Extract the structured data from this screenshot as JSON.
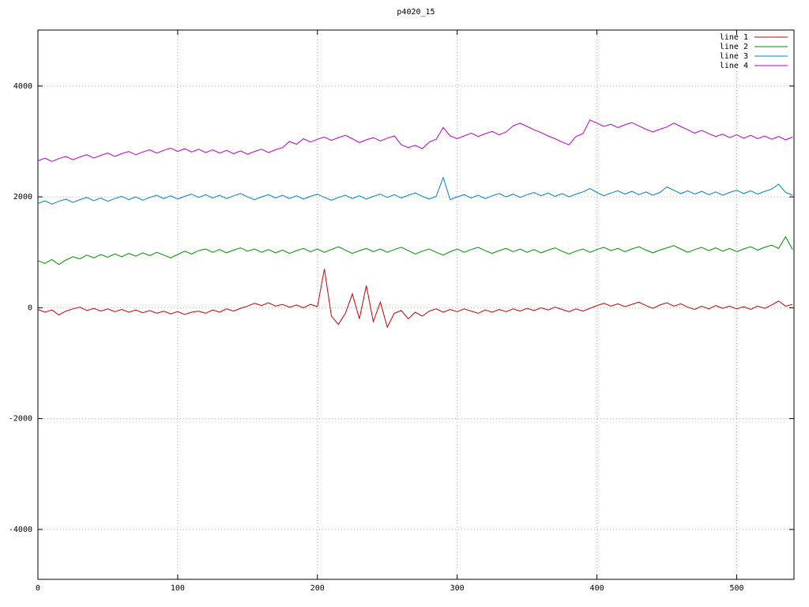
{
  "colors": {
    "background": "#ffffff",
    "border": "#000000",
    "grid": "#b4b4b4",
    "text": "#000000"
  },
  "chart_data": {
    "type": "line",
    "title": "p4020_15",
    "xlabel": "",
    "ylabel": "",
    "xlim": [
      0,
      541
    ],
    "ylim": [
      -4900,
      5010
    ],
    "x_ticks": [
      0,
      100,
      200,
      300,
      400,
      500
    ],
    "y_ticks": [
      -4000,
      -2000,
      0,
      2000,
      4000
    ],
    "grid": true,
    "grid_style": "dotted",
    "legend_position": "top-right-inside",
    "x_start": 0,
    "x_step": 5,
    "series": [
      {
        "name": "line 1",
        "color": "#cc0000",
        "values": [
          -30,
          -80,
          -40,
          -130,
          -60,
          -20,
          10,
          -50,
          -10,
          -60,
          -20,
          -70,
          -30,
          -80,
          -40,
          -90,
          -50,
          -100,
          -60,
          -110,
          -70,
          -120,
          -80,
          -60,
          -100,
          -40,
          -80,
          -20,
          -60,
          -10,
          30,
          80,
          40,
          90,
          30,
          60,
          10,
          50,
          0,
          60,
          20,
          700,
          -150,
          -300,
          -100,
          250,
          -200,
          400,
          -250,
          100,
          -350,
          -100,
          -50,
          -200,
          -80,
          -150,
          -60,
          -20,
          -80,
          -30,
          -70,
          -20,
          -60,
          -100,
          -40,
          -80,
          -30,
          -70,
          -20,
          -60,
          -10,
          -50,
          0,
          -40,
          10,
          -30,
          -70,
          -20,
          -60,
          -10,
          40,
          80,
          30,
          70,
          20,
          60,
          100,
          40,
          -10,
          50,
          90,
          30,
          70,
          10,
          -30,
          30,
          -20,
          40,
          -10,
          30,
          -20,
          20,
          -30,
          30,
          -10,
          50,
          120,
          30,
          60
        ]
      },
      {
        "name": "line 2",
        "color": "#009100",
        "values": [
          850,
          800,
          870,
          780,
          860,
          920,
          880,
          950,
          900,
          960,
          910,
          970,
          920,
          980,
          930,
          990,
          940,
          1000,
          950,
          900,
          960,
          1020,
          970,
          1030,
          1060,
          1000,
          1050,
          990,
          1040,
          1080,
          1020,
          1060,
          1000,
          1050,
          990,
          1040,
          980,
          1030,
          1070,
          1010,
          1060,
          1000,
          1050,
          1100,
          1040,
          980,
          1030,
          1070,
          1010,
          1060,
          1000,
          1050,
          1090,
          1030,
          970,
          1020,
          1060,
          1000,
          950,
          1010,
          1060,
          1000,
          1050,
          1090,
          1030,
          980,
          1030,
          1070,
          1010,
          1060,
          1000,
          1050,
          990,
          1040,
          1080,
          1020,
          970,
          1020,
          1060,
          1000,
          1050,
          1090,
          1030,
          1070,
          1010,
          1060,
          1100,
          1040,
          990,
          1040,
          1080,
          1120,
          1060,
          1000,
          1050,
          1090,
          1030,
          1080,
          1020,
          1070,
          1010,
          1060,
          1100,
          1040,
          1090,
          1130,
          1070,
          1280,
          1050
        ]
      },
      {
        "name": "line 3",
        "color": "#0080c8",
        "values": [
          1880,
          1930,
          1870,
          1920,
          1960,
          1900,
          1950,
          1990,
          1930,
          1980,
          1920,
          1970,
          2010,
          1950,
          2000,
          1940,
          1990,
          2030,
          1970,
          2020,
          1960,
          2010,
          2050,
          1990,
          2040,
          1980,
          2030,
          1970,
          2020,
          2060,
          2000,
          1950,
          2000,
          2040,
          1980,
          2030,
          1970,
          2020,
          1960,
          2010,
          2050,
          1990,
          1940,
          1990,
          2030,
          1970,
          2020,
          1960,
          2010,
          2050,
          1990,
          2040,
          1980,
          2030,
          2070,
          2010,
          1960,
          2010,
          2350,
          1950,
          2000,
          2040,
          1980,
          2030,
          1970,
          2020,
          2060,
          2000,
          2050,
          1990,
          2040,
          2080,
          2020,
          2070,
          2010,
          2060,
          2000,
          2050,
          2090,
          2150,
          2080,
          2020,
          2070,
          2110,
          2050,
          2100,
          2040,
          2090,
          2030,
          2080,
          2180,
          2120,
          2060,
          2110,
          2050,
          2100,
          2040,
          2090,
          2030,
          2080,
          2120,
          2060,
          2110,
          2050,
          2100,
          2140,
          2230,
          2080,
          2030
        ]
      },
      {
        "name": "line 4",
        "color": "#bb00cc",
        "values": [
          2650,
          2700,
          2640,
          2690,
          2730,
          2670,
          2720,
          2760,
          2700,
          2750,
          2790,
          2730,
          2780,
          2820,
          2760,
          2810,
          2850,
          2790,
          2840,
          2880,
          2820,
          2870,
          2810,
          2860,
          2800,
          2850,
          2790,
          2840,
          2780,
          2830,
          2770,
          2820,
          2860,
          2800,
          2850,
          2890,
          3000,
          2950,
          3050,
          2990,
          3040,
          3080,
          3020,
          3070,
          3110,
          3050,
          2980,
          3030,
          3070,
          3010,
          3060,
          3100,
          2940,
          2890,
          2930,
          2870,
          2990,
          3040,
          3250,
          3100,
          3050,
          3100,
          3150,
          3090,
          3140,
          3180,
          3120,
          3170,
          3280,
          3330,
          3270,
          3210,
          3160,
          3100,
          3050,
          2990,
          2940,
          3090,
          3140,
          3390,
          3330,
          3270,
          3310,
          3250,
          3300,
          3340,
          3280,
          3220,
          3170,
          3220,
          3260,
          3330,
          3270,
          3210,
          3150,
          3200,
          3140,
          3090,
          3130,
          3070,
          3120,
          3060,
          3110,
          3050,
          3100,
          3040,
          3090,
          3030,
          3080
        ]
      }
    ]
  }
}
